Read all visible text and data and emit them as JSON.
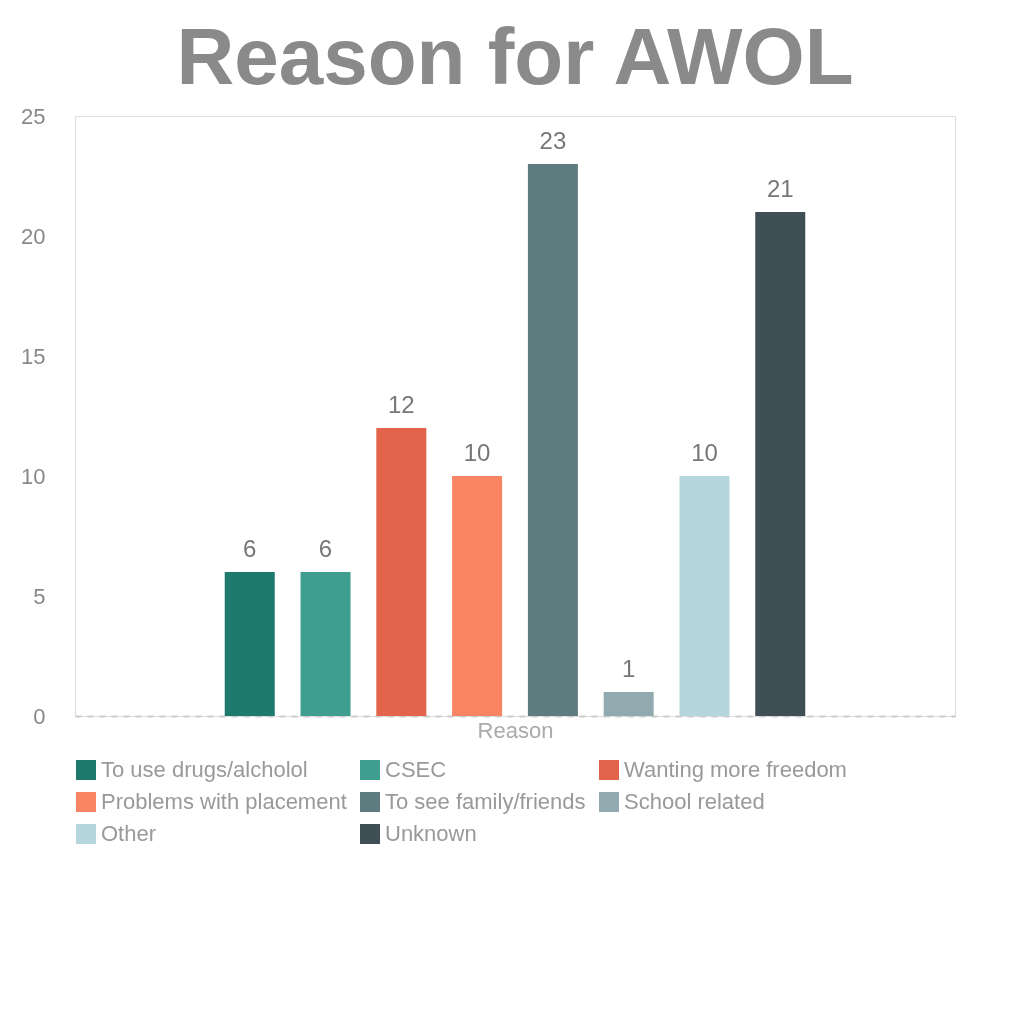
{
  "chart_data": {
    "type": "bar",
    "title": "Reason for AWOL",
    "xlabel": "Reason",
    "categories": [
      null
    ],
    "series": [
      {
        "name": "To use drugs/alcholol",
        "color": "#1f7a6e",
        "values": [
          6
        ]
      },
      {
        "name": "CSEC",
        "color": "#3e9e90",
        "values": [
          6
        ]
      },
      {
        "name": "Wanting more freedom",
        "color": "#e2644a",
        "values": [
          12
        ]
      },
      {
        "name": "Problems with placement",
        "color": "#f98463",
        "values": [
          10
        ]
      },
      {
        "name": "To see family/friends",
        "color": "#5e7b80",
        "values": [
          23
        ]
      },
      {
        "name": "School related",
        "color": "#91aab0",
        "values": [
          1
        ]
      },
      {
        "name": "Other",
        "color": "#b5d6dd",
        "values": [
          10
        ]
      },
      {
        "name": "Unknown",
        "color": "#3f4f55",
        "values": [
          21
        ]
      }
    ],
    "ylim": [
      0,
      25
    ],
    "yticks": [
      0,
      5,
      10,
      15,
      20,
      25
    ],
    "data_labels": true,
    "legend": "bottom",
    "grid": false
  }
}
